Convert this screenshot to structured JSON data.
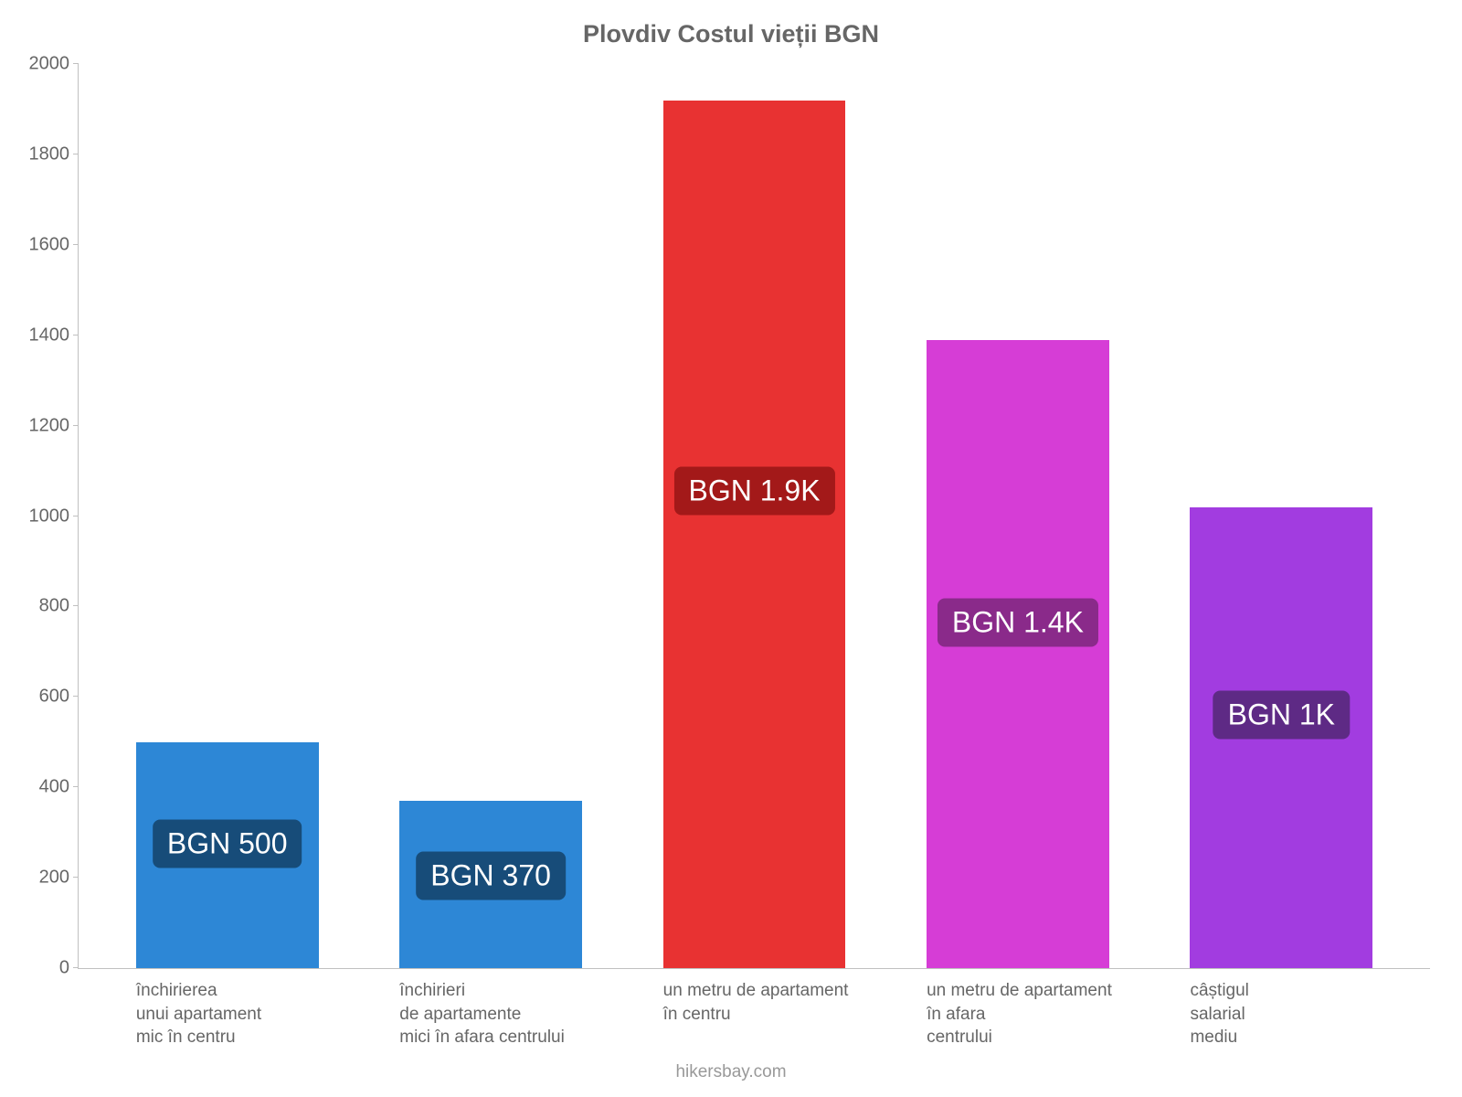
{
  "chart": {
    "type": "bar",
    "title": "Plovdiv Costul vieții BGN",
    "title_color": "#666666",
    "title_fontsize": 27,
    "background_color": "#ffffff",
    "axis_color": "#c0c0c0",
    "label_color": "#666666",
    "label_fontsize": 20,
    "xlabel_fontsize": 19,
    "ylim": [
      0,
      2000
    ],
    "ytick_step": 200,
    "yticks": [
      0,
      200,
      400,
      600,
      800,
      1000,
      1200,
      1400,
      1600,
      1800,
      2000
    ],
    "bar_width_pct": 13.5,
    "category_gap_pct": 6,
    "categories": [
      {
        "label": "închirierea\nunui apartament\nmic în centru",
        "value": 500,
        "display": "BGN 500",
        "bar_color": "#2d87d6",
        "badge_bg": "#174c79"
      },
      {
        "label": "închirieri\nde apartamente\nmici în afara centrului",
        "value": 370,
        "display": "BGN 370",
        "bar_color": "#2d87d6",
        "badge_bg": "#174c79"
      },
      {
        "label": "un metru de apartament\nîn centru",
        "value": 1920,
        "display": "BGN 1.9K",
        "bar_color": "#e83232",
        "badge_bg": "#a31919"
      },
      {
        "label": "un metru de apartament\nîn afara\ncentrului",
        "value": 1390,
        "display": "BGN 1.4K",
        "bar_color": "#d63dd6",
        "badge_bg": "#8a2a8a"
      },
      {
        "label": "câștigul\nsalarial\nmediu",
        "value": 1020,
        "display": "BGN 1K",
        "bar_color": "#a23ce0",
        "badge_bg": "#5e2a85"
      }
    ],
    "value_badge": {
      "fontsize": 32,
      "text_color": "#ffffff",
      "radius": 8
    }
  },
  "attribution": "hikersbay.com",
  "attribution_color": "#999999"
}
